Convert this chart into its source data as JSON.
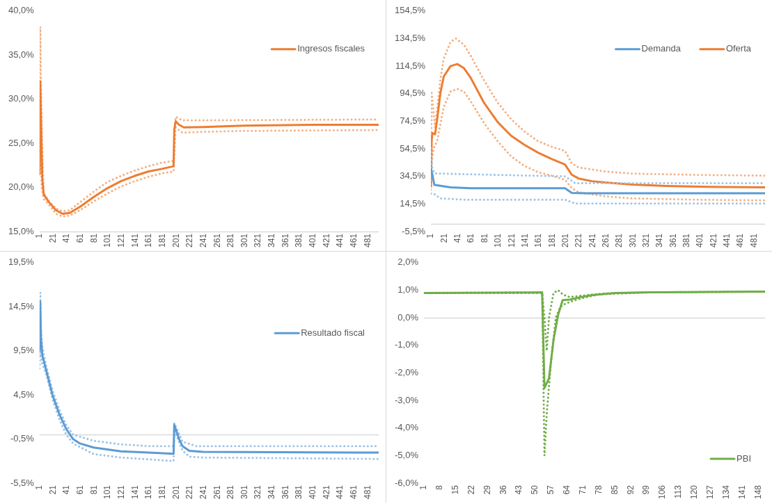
{
  "chart_data": [
    {
      "type": "line",
      "legend": "top right",
      "marker": "none",
      "grid": false,
      "xlim": [
        1,
        497
      ],
      "xticks": [
        1,
        21,
        41,
        61,
        81,
        101,
        121,
        141,
        161,
        181,
        201,
        221,
        241,
        261,
        281,
        301,
        321,
        341,
        361,
        381,
        401,
        421,
        441,
        461,
        481
      ],
      "ylim": [
        15,
        40
      ],
      "yticks": [
        {
          "value": 15,
          "label": "15,0%"
        },
        {
          "value": 20,
          "label": "20,0%"
        },
        {
          "value": 25,
          "label": "25,0%"
        },
        {
          "value": 30,
          "label": "30,0%"
        },
        {
          "value": 35,
          "label": "35,0%"
        },
        {
          "value": 40,
          "label": "40,0%"
        }
      ],
      "series": [
        {
          "name": "Ingresos fiscales",
          "color": "#ed7d31",
          "line_style": "solid",
          "x": [
            1,
            2,
            3,
            5,
            7,
            15,
            25,
            35,
            45,
            60,
            80,
            100,
            120,
            140,
            160,
            180,
            197,
            198,
            200,
            205,
            212,
            240,
            300,
            400,
            497
          ],
          "values": [
            21.5,
            32.0,
            28,
            21,
            19.2,
            18.3,
            17.4,
            17.0,
            17.1,
            17.8,
            18.9,
            19.9,
            20.7,
            21.3,
            21.8,
            22.1,
            22.4,
            26.5,
            27.5,
            27.1,
            26.8,
            26.85,
            27.0,
            27.1,
            27.1
          ]
        },
        {
          "color": "#f4b183",
          "line_style": "dotted",
          "x": [
            1,
            2,
            3,
            5,
            7,
            15,
            25,
            35,
            45,
            60,
            80,
            100,
            120,
            140,
            160,
            180,
            197,
            200,
            210,
            240,
            497
          ],
          "values": [
            21.5,
            38.2,
            32,
            24,
            19.3,
            18.4,
            17.6,
            17.3,
            17.4,
            18.3,
            19.5,
            20.6,
            21.3,
            21.9,
            22.4,
            22.8,
            23.0,
            28.0,
            27.6,
            27.6,
            27.7
          ]
        },
        {
          "color": "#f4b183",
          "line_style": "dotted",
          "x": [
            1,
            2,
            4,
            7,
            15,
            25,
            35,
            45,
            60,
            80,
            100,
            120,
            140,
            160,
            180,
            197,
            200,
            210,
            240,
            300,
            497
          ],
          "values": [
            21.5,
            26,
            20,
            18.7,
            18.0,
            17.0,
            16.7,
            16.8,
            17.4,
            18.4,
            19.3,
            20.1,
            20.7,
            21.2,
            21.6,
            21.8,
            26.8,
            26.2,
            26.3,
            26.4,
            26.5
          ]
        }
      ]
    },
    {
      "type": "line",
      "legend": "top right",
      "marker": "none",
      "grid": false,
      "xlim": [
        1,
        497
      ],
      "xticks": [
        1,
        21,
        41,
        61,
        81,
        101,
        121,
        141,
        161,
        181,
        201,
        221,
        241,
        261,
        281,
        301,
        321,
        341,
        361,
        381,
        401,
        421,
        441,
        461,
        481
      ],
      "ylim": [
        -5.5,
        154.5
      ],
      "yticks": [
        {
          "value": -5.5,
          "label": "-5,5%"
        },
        {
          "value": 14.5,
          "label": "14,5%"
        },
        {
          "value": 34.5,
          "label": "34,5%"
        },
        {
          "value": 54.5,
          "label": "54,5%"
        },
        {
          "value": 74.5,
          "label": "74,5%"
        },
        {
          "value": 94.5,
          "label": "94,5%"
        },
        {
          "value": 114.5,
          "label": "114,5%"
        },
        {
          "value": 134.5,
          "label": "134,5%"
        },
        {
          "value": 154.5,
          "label": "154,5%"
        }
      ],
      "series": [
        {
          "name": "Demanda",
          "color": "#5b9bd5",
          "line_style": "solid",
          "x": [
            1,
            3,
            6,
            10,
            30,
            60,
            200,
            210,
            230,
            497
          ],
          "values": [
            40,
            36,
            28.3,
            28,
            26.5,
            25.9,
            25.9,
            22.5,
            22.2,
            22.2
          ]
        },
        {
          "color": "#9dc3e6",
          "line_style": "dotted",
          "x": [
            1,
            3,
            7,
            100,
            200,
            215,
            497
          ],
          "values": [
            55,
            40,
            36.6,
            35.5,
            34.5,
            29.6,
            29.6
          ]
        },
        {
          "color": "#9dc3e6",
          "line_style": "dotted",
          "x": [
            1,
            5,
            15,
            50,
            200,
            215,
            497
          ],
          "values": [
            22,
            22,
            18.5,
            17.6,
            17.6,
            14.8,
            14.8
          ]
        },
        {
          "name": "Oferta",
          "color": "#ed7d31",
          "line_style": "solid",
          "x": [
            1,
            2,
            3,
            7,
            10,
            15,
            20,
            30,
            40,
            50,
            60,
            80,
            100,
            120,
            140,
            160,
            180,
            200,
            210,
            220,
            240,
            260,
            300,
            350,
            400,
            497
          ],
          "values": [
            27,
            60,
            66,
            65,
            75,
            95,
            107,
            114.5,
            116,
            113,
            106,
            87.7,
            73.9,
            64,
            57.3,
            51.7,
            47.1,
            43.1,
            35.7,
            33,
            31,
            30,
            28.5,
            27.5,
            27,
            26.5
          ]
        },
        {
          "color": "#f4b183",
          "line_style": "dotted",
          "x": [
            1,
            2,
            4,
            7,
            10,
            15,
            20,
            30,
            38,
            50,
            60,
            80,
            100,
            120,
            140,
            160,
            180,
            200,
            210,
            220,
            260,
            300,
            400,
            497
          ],
          "values": [
            30,
            95,
            85,
            70,
            82,
            105,
            120,
            132,
            134.5,
            130,
            122,
            104,
            88,
            76,
            67,
            60,
            56,
            53,
            44,
            41,
            38,
            36.5,
            35.5,
            35
          ]
        },
        {
          "color": "#f4b183",
          "line_style": "dotted",
          "x": [
            1,
            2,
            5,
            10,
            20,
            30,
            40,
            50,
            60,
            80,
            100,
            120,
            140,
            160,
            180,
            200,
            210,
            220,
            260,
            300,
            400,
            497
          ],
          "values": [
            22,
            45,
            55,
            60,
            85,
            96,
            98,
            96,
            89,
            73,
            60,
            49,
            42,
            37.5,
            35,
            32,
            26,
            23,
            20,
            18.5,
            17.5,
            17
          ]
        }
      ]
    },
    {
      "type": "line",
      "legend": "right",
      "marker": "none",
      "grid": false,
      "ref_lines": [
        {
          "axis": "y",
          "value": 0,
          "color": "#d9d9d9"
        }
      ],
      "xlim": [
        1,
        497
      ],
      "xticks": [
        1,
        21,
        41,
        61,
        81,
        101,
        121,
        141,
        161,
        181,
        201,
        221,
        241,
        261,
        281,
        301,
        321,
        341,
        361,
        381,
        401,
        421,
        441,
        461,
        481
      ],
      "ylim": [
        -5.5,
        19.5
      ],
      "yticks": [
        {
          "value": -5.5,
          "label": "-5,5%"
        },
        {
          "value": -0.5,
          "label": "-0,5%"
        },
        {
          "value": 4.5,
          "label": "4,5%"
        },
        {
          "value": 9.5,
          "label": "9,5%"
        },
        {
          "value": 14.5,
          "label": "14,5%"
        },
        {
          "value": 19.5,
          "label": "19,5%"
        }
      ],
      "series": [
        {
          "name": "Resultado fiscal",
          "color": "#5b9bd5",
          "line_style": "solid",
          "x": [
            1,
            2,
            3,
            5,
            10,
            20,
            30,
            40,
            50,
            60,
            80,
            120,
            160,
            197,
            198,
            205,
            210,
            220,
            240,
            497
          ],
          "values": [
            9.5,
            15.1,
            11,
            9,
            7.5,
            4.45,
            2.3,
            0.64,
            -0.5,
            -1.0,
            -1.46,
            -1.9,
            -2.04,
            -2.18,
            1.13,
            -0.5,
            -1.3,
            -1.84,
            -1.95,
            -2.04
          ]
        },
        {
          "color": "#9dc3e6",
          "line_style": "dotted",
          "x": [
            1,
            2,
            3,
            5,
            10,
            20,
            30,
            40,
            50,
            80,
            120,
            160,
            197,
            198,
            210,
            230,
            497
          ],
          "values": [
            9,
            16.1,
            12,
            10,
            8,
            5,
            2.8,
            1.1,
            0.0,
            -0.7,
            -1.1,
            -1.3,
            -1.3,
            1.3,
            -0.8,
            -1.3,
            -1.3
          ]
        },
        {
          "color": "#9dc3e6",
          "line_style": "dotted",
          "x": [
            1,
            2,
            3,
            5,
            10,
            20,
            30,
            40,
            50,
            80,
            120,
            160,
            197,
            198,
            210,
            220,
            240,
            497
          ],
          "values": [
            7.5,
            10,
            9,
            8,
            7,
            4.0,
            1.7,
            0.0,
            -1.0,
            -2.2,
            -2.6,
            -2.8,
            -3.0,
            0.5,
            -1.8,
            -2.5,
            -2.6,
            -2.76
          ]
        }
      ]
    },
    {
      "type": "line",
      "legend": "bottom right",
      "marker": "none",
      "grid": false,
      "ref_lines": [
        {
          "axis": "y",
          "value": 0,
          "color": "#d9d9d9"
        }
      ],
      "xlim": [
        1,
        151
      ],
      "xticks": [
        1,
        8,
        15,
        22,
        29,
        36,
        43,
        50,
        57,
        64,
        71,
        78,
        85,
        92,
        99,
        106,
        113,
        120,
        127,
        134,
        141,
        148
      ],
      "ylim": [
        -6,
        2
      ],
      "yticks": [
        {
          "value": -6,
          "label": "-6,0%"
        },
        {
          "value": -5,
          "label": "-5,0%"
        },
        {
          "value": -4,
          "label": "-4,0%"
        },
        {
          "value": -3,
          "label": "-3,0%"
        },
        {
          "value": -2,
          "label": "-2,0%"
        },
        {
          "value": -1,
          "label": "-1,0%"
        },
        {
          "value": 0,
          "label": "0,0%"
        },
        {
          "value": 1,
          "label": "1,0%"
        },
        {
          "value": 2,
          "label": "2,0%"
        }
      ],
      "series": [
        {
          "name": "PBI",
          "color": "#70ad47",
          "line_style": "solid",
          "x": [
            1,
            53,
            54,
            56,
            58,
            60,
            62,
            65,
            70,
            75,
            85,
            100,
            151
          ],
          "values": [
            0.9,
            0.92,
            -2.55,
            -2.2,
            -0.8,
            0.1,
            0.64,
            0.66,
            0.75,
            0.82,
            0.9,
            0.92,
            0.95
          ]
        },
        {
          "color": "#70ad47",
          "line_style": "dotted",
          "x": [
            1,
            53,
            54,
            55,
            56,
            58,
            60,
            62,
            65,
            70,
            80,
            100,
            151
          ],
          "values": [
            0.9,
            0.92,
            0.0,
            -1.2,
            0.0,
            0.9,
            1.0,
            0.85,
            0.75,
            0.8,
            0.88,
            0.92,
            0.95
          ]
        },
        {
          "color": "#70ad47",
          "line_style": "dotted",
          "x": [
            1,
            53,
            54,
            55,
            57,
            59,
            61,
            63,
            66,
            70,
            78,
            100,
            151
          ],
          "values": [
            0.9,
            0.9,
            -5.0,
            -3.5,
            -1.5,
            0.0,
            0.4,
            0.5,
            0.6,
            0.7,
            0.85,
            0.92,
            0.95
          ]
        }
      ]
    }
  ]
}
